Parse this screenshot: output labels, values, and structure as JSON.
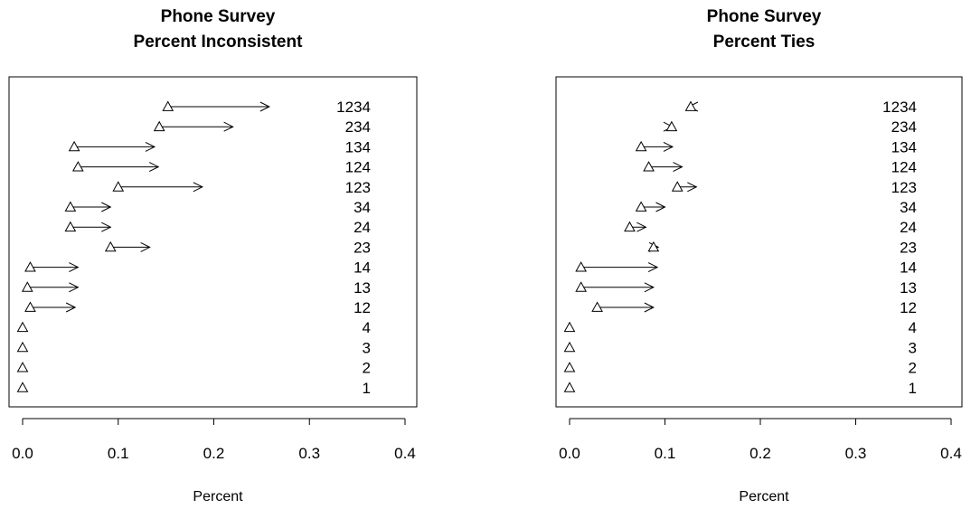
{
  "chart_data": [
    {
      "type": "arrow-dot",
      "title": "Phone Survey",
      "subtitle": "Percent Inconsistent",
      "xlabel": "Percent",
      "ylabel": "",
      "xlim": [
        0,
        0.4
      ],
      "xticks": [
        "0.0",
        "0.1",
        "0.2",
        "0.3",
        "0.4"
      ],
      "tick_values": [
        0,
        0.1,
        0.2,
        0.3,
        0.4
      ],
      "categories": [
        "1234",
        "234",
        "134",
        "124",
        "123",
        "34",
        "24",
        "23",
        "14",
        "13",
        "12",
        "4",
        "3",
        "2",
        "1"
      ],
      "series": [
        {
          "marker": "triangle",
          "values": [
            0.152,
            0.143,
            0.054,
            0.058,
            0.1,
            0.05,
            0.05,
            0.092,
            0.008,
            0.005,
            0.008,
            0.0,
            0.0,
            0.0,
            0.0
          ]
        },
        {
          "marker": "arrowhead",
          "values": [
            0.258,
            0.22,
            0.138,
            0.142,
            0.188,
            0.092,
            0.092,
            0.133,
            0.058,
            0.058,
            0.055,
            0.0,
            0.0,
            0.0,
            0.0
          ]
        }
      ]
    },
    {
      "type": "arrow-dot",
      "title": "Phone Survey",
      "subtitle": "Percent Ties",
      "xlabel": "Percent",
      "ylabel": "",
      "xlim": [
        0,
        0.4
      ],
      "xticks": [
        "0.0",
        "0.1",
        "0.2",
        "0.3",
        "0.4"
      ],
      "tick_values": [
        0,
        0.1,
        0.2,
        0.3,
        0.4
      ],
      "categories": [
        "1234",
        "234",
        "134",
        "124",
        "123",
        "34",
        "24",
        "23",
        "14",
        "13",
        "12",
        "4",
        "3",
        "2",
        "1"
      ],
      "series": [
        {
          "marker": "triangle",
          "values": [
            0.127,
            0.107,
            0.075,
            0.083,
            0.113,
            0.075,
            0.063,
            0.088,
            0.012,
            0.012,
            0.029,
            0.0,
            0.0,
            0.0,
            0.0
          ]
        },
        {
          "marker": "arrowhead",
          "values": [
            0.125,
            0.108,
            0.108,
            0.118,
            0.133,
            0.1,
            0.08,
            0.093,
            0.092,
            0.088,
            0.088,
            0.0,
            0.0,
            0.0,
            0.0
          ]
        }
      ]
    }
  ]
}
